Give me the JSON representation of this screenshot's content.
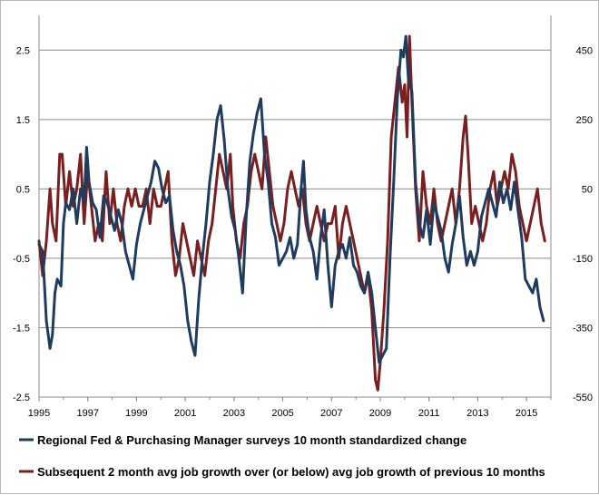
{
  "chart_data": {
    "type": "line",
    "x_range": [
      1995,
      2016
    ],
    "x_ticks": [
      "1995",
      "1997",
      "1999",
      "2001",
      "2003",
      "2005",
      "2007",
      "2009",
      "2011",
      "2013",
      "2015"
    ],
    "y_left": {
      "range": [
        -2.5,
        3.0
      ],
      "ticks": [
        "2.5",
        "1.5",
        "0.5",
        "-0.5",
        "-1.5",
        "-2.5"
      ]
    },
    "y_right": {
      "range": [
        -550,
        550
      ],
      "ticks": [
        "450",
        "250",
        "50",
        "-150",
        "-350",
        "-550"
      ]
    },
    "grid": "horizontal",
    "legend_position": "bottom",
    "series": [
      {
        "name": "Regional Fed & Purchasing Manager surveys 10 month standardized change",
        "axis": "left",
        "color": "#1f3b5e",
        "points": [
          [
            1995.0,
            -0.3
          ],
          [
            1995.15,
            -0.4
          ],
          [
            1995.3,
            -1.4
          ],
          [
            1995.45,
            -1.8
          ],
          [
            1995.55,
            -1.6
          ],
          [
            1995.65,
            -1.0
          ],
          [
            1995.75,
            -0.8
          ],
          [
            1995.9,
            -0.9
          ],
          [
            1996.0,
            0.0
          ],
          [
            1996.1,
            0.3
          ],
          [
            1996.25,
            0.2
          ],
          [
            1996.4,
            0.5
          ],
          [
            1996.55,
            0.0
          ],
          [
            1996.7,
            0.5
          ],
          [
            1996.85,
            0.3
          ],
          [
            1996.95,
            1.1
          ],
          [
            1997.05,
            0.6
          ],
          [
            1997.2,
            0.3
          ],
          [
            1997.35,
            0.2
          ],
          [
            1997.5,
            -0.2
          ],
          [
            1997.65,
            0.4
          ],
          [
            1997.8,
            0.3
          ],
          [
            1997.95,
            0.1
          ],
          [
            1998.1,
            -0.1
          ],
          [
            1998.25,
            0.2
          ],
          [
            1998.4,
            0.0
          ],
          [
            1998.55,
            -0.4
          ],
          [
            1998.7,
            -0.6
          ],
          [
            1998.85,
            -0.8
          ],
          [
            1999.0,
            -0.3
          ],
          [
            1999.15,
            0.0
          ],
          [
            1999.3,
            0.2
          ],
          [
            1999.45,
            0.4
          ],
          [
            1999.6,
            0.6
          ],
          [
            1999.75,
            0.9
          ],
          [
            1999.9,
            0.8
          ],
          [
            2000.05,
            0.5
          ],
          [
            2000.2,
            0.3
          ],
          [
            2000.35,
            0.4
          ],
          [
            2000.5,
            -0.1
          ],
          [
            2000.65,
            -0.4
          ],
          [
            2000.8,
            -0.6
          ],
          [
            2000.95,
            -0.9
          ],
          [
            2001.1,
            -1.4
          ],
          [
            2001.25,
            -1.7
          ],
          [
            2001.4,
            -1.9
          ],
          [
            2001.55,
            -1.1
          ],
          [
            2001.7,
            -0.5
          ],
          [
            2001.85,
            0.0
          ],
          [
            2002.0,
            0.6
          ],
          [
            2002.15,
            1.0
          ],
          [
            2002.3,
            1.5
          ],
          [
            2002.45,
            1.7
          ],
          [
            2002.6,
            1.2
          ],
          [
            2002.75,
            0.5
          ],
          [
            2002.9,
            0.1
          ],
          [
            2003.05,
            -0.1
          ],
          [
            2003.2,
            -0.5
          ],
          [
            2003.35,
            -1.0
          ],
          [
            2003.5,
            0.1
          ],
          [
            2003.65,
            0.9
          ],
          [
            2003.8,
            1.3
          ],
          [
            2003.95,
            1.6
          ],
          [
            2004.1,
            1.8
          ],
          [
            2004.25,
            1.0
          ],
          [
            2004.4,
            0.6
          ],
          [
            2004.55,
            0.0
          ],
          [
            2004.7,
            -0.2
          ],
          [
            2004.85,
            -0.6
          ],
          [
            2005.0,
            -0.5
          ],
          [
            2005.15,
            -0.4
          ],
          [
            2005.3,
            -0.2
          ],
          [
            2005.45,
            -0.5
          ],
          [
            2005.6,
            -0.3
          ],
          [
            2005.75,
            0.5
          ],
          [
            2005.85,
            0.9
          ],
          [
            2005.95,
            0.2
          ],
          [
            2006.1,
            -0.2
          ],
          [
            2006.25,
            -0.4
          ],
          [
            2006.4,
            -0.8
          ],
          [
            2006.55,
            -0.2
          ],
          [
            2006.7,
            0.2
          ],
          [
            2006.85,
            -0.6
          ],
          [
            2007.0,
            -1.2
          ],
          [
            2007.15,
            -0.6
          ],
          [
            2007.3,
            -0.4
          ],
          [
            2007.45,
            -0.3
          ],
          [
            2007.6,
            -0.5
          ],
          [
            2007.75,
            -0.2
          ],
          [
            2007.9,
            -0.6
          ],
          [
            2008.05,
            -0.7
          ],
          [
            2008.2,
            -0.9
          ],
          [
            2008.35,
            -1.0
          ],
          [
            2008.5,
            -0.7
          ],
          [
            2008.65,
            -1.0
          ],
          [
            2008.8,
            -1.5
          ],
          [
            2008.95,
            -2.0
          ],
          [
            2009.1,
            -1.9
          ],
          [
            2009.25,
            -1.8
          ],
          [
            2009.4,
            -0.5
          ],
          [
            2009.55,
            0.6
          ],
          [
            2009.7,
            1.8
          ],
          [
            2009.85,
            2.5
          ],
          [
            2009.95,
            2.4
          ],
          [
            2010.05,
            2.7
          ],
          [
            2010.15,
            2.1
          ],
          [
            2010.3,
            1.9
          ],
          [
            2010.45,
            0.6
          ],
          [
            2010.6,
            0.0
          ],
          [
            2010.75,
            -0.2
          ],
          [
            2010.9,
            0.2
          ],
          [
            2011.05,
            -0.3
          ],
          [
            2011.2,
            0.3
          ],
          [
            2011.35,
            0.1
          ],
          [
            2011.5,
            -0.1
          ],
          [
            2011.65,
            -0.5
          ],
          [
            2011.8,
            -0.7
          ],
          [
            2011.95,
            -0.3
          ],
          [
            2012.1,
            0.0
          ],
          [
            2012.25,
            0.4
          ],
          [
            2012.4,
            -0.2
          ],
          [
            2012.55,
            -0.6
          ],
          [
            2012.7,
            -0.4
          ],
          [
            2012.85,
            -0.6
          ],
          [
            2013.0,
            -0.4
          ],
          [
            2013.15,
            0.1
          ],
          [
            2013.3,
            0.3
          ],
          [
            2013.45,
            0.5
          ],
          [
            2013.6,
            0.3
          ],
          [
            2013.75,
            0.1
          ],
          [
            2013.9,
            0.6
          ],
          [
            2014.05,
            0.3
          ],
          [
            2014.2,
            0.5
          ],
          [
            2014.35,
            0.2
          ],
          [
            2014.5,
            0.6
          ],
          [
            2014.65,
            0.2
          ],
          [
            2014.8,
            -0.2
          ],
          [
            2014.95,
            -0.8
          ],
          [
            2015.1,
            -0.9
          ],
          [
            2015.25,
            -1.0
          ],
          [
            2015.4,
            -0.8
          ],
          [
            2015.55,
            -1.2
          ],
          [
            2015.7,
            -1.4
          ]
        ]
      },
      {
        "name": "Subsequent 2 month avg job growth over (or below) avg job growth of previous 10 months",
        "axis": "right",
        "color": "#7a1f1f",
        "points": [
          [
            1995.0,
            -100
          ],
          [
            1995.15,
            -200
          ],
          [
            1995.3,
            -100
          ],
          [
            1995.45,
            50
          ],
          [
            1995.55,
            -50
          ],
          [
            1995.7,
            -100
          ],
          [
            1995.85,
            150
          ],
          [
            1995.95,
            150
          ],
          [
            1996.1,
            0
          ],
          [
            1996.25,
            100
          ],
          [
            1996.4,
            0
          ],
          [
            1996.55,
            50
          ],
          [
            1996.7,
            150
          ],
          [
            1996.85,
            -50
          ],
          [
            1997.0,
            100
          ],
          [
            1997.15,
            0
          ],
          [
            1997.3,
            -100
          ],
          [
            1997.45,
            -50
          ],
          [
            1997.6,
            -100
          ],
          [
            1997.75,
            100
          ],
          [
            1997.9,
            -50
          ],
          [
            1998.05,
            50
          ],
          [
            1998.2,
            -50
          ],
          [
            1998.35,
            -100
          ],
          [
            1998.5,
            0
          ],
          [
            1998.65,
            50
          ],
          [
            1998.8,
            0
          ],
          [
            1998.95,
            50
          ],
          [
            1999.1,
            0
          ],
          [
            1999.25,
            0
          ],
          [
            1999.4,
            50
          ],
          [
            1999.55,
            -50
          ],
          [
            1999.7,
            50
          ],
          [
            1999.85,
            0
          ],
          [
            2000.0,
            0
          ],
          [
            2000.15,
            50
          ],
          [
            2000.3,
            100
          ],
          [
            2000.45,
            -100
          ],
          [
            2000.6,
            -200
          ],
          [
            2000.75,
            -150
          ],
          [
            2000.9,
            -50
          ],
          [
            2001.05,
            -100
          ],
          [
            2001.2,
            -150
          ],
          [
            2001.35,
            -200
          ],
          [
            2001.5,
            -100
          ],
          [
            2001.65,
            -150
          ],
          [
            2001.8,
            -200
          ],
          [
            2001.95,
            -100
          ],
          [
            2002.1,
            -50
          ],
          [
            2002.25,
            50
          ],
          [
            2002.4,
            150
          ],
          [
            2002.55,
            100
          ],
          [
            2002.7,
            50
          ],
          [
            2002.85,
            150
          ],
          [
            2002.95,
            0
          ],
          [
            2003.1,
            -100
          ],
          [
            2003.25,
            -150
          ],
          [
            2003.4,
            -50
          ],
          [
            2003.55,
            0
          ],
          [
            2003.7,
            100
          ],
          [
            2003.85,
            150
          ],
          [
            2004.0,
            100
          ],
          [
            2004.15,
            50
          ],
          [
            2004.3,
            200
          ],
          [
            2004.45,
            100
          ],
          [
            2004.6,
            0
          ],
          [
            2004.75,
            -50
          ],
          [
            2004.9,
            -100
          ],
          [
            2005.05,
            -50
          ],
          [
            2005.2,
            50
          ],
          [
            2005.35,
            100
          ],
          [
            2005.5,
            50
          ],
          [
            2005.65,
            0
          ],
          [
            2005.8,
            50
          ],
          [
            2005.95,
            -50
          ],
          [
            2006.1,
            -100
          ],
          [
            2006.25,
            -50
          ],
          [
            2006.4,
            0
          ],
          [
            2006.55,
            -50
          ],
          [
            2006.7,
            -100
          ],
          [
            2006.85,
            -50
          ],
          [
            2007.0,
            -50
          ],
          [
            2007.15,
            0
          ],
          [
            2007.3,
            -150
          ],
          [
            2007.45,
            -50
          ],
          [
            2007.6,
            0
          ],
          [
            2007.75,
            -50
          ],
          [
            2007.9,
            -100
          ],
          [
            2008.05,
            -150
          ],
          [
            2008.2,
            -200
          ],
          [
            2008.35,
            -250
          ],
          [
            2008.5,
            -200
          ],
          [
            2008.65,
            -300
          ],
          [
            2008.8,
            -500
          ],
          [
            2008.9,
            -530
          ],
          [
            2009.0,
            -450
          ],
          [
            2009.15,
            -300
          ],
          [
            2009.3,
            -100
          ],
          [
            2009.45,
            200
          ],
          [
            2009.6,
            300
          ],
          [
            2009.75,
            400
          ],
          [
            2009.9,
            300
          ],
          [
            2010.0,
            350
          ],
          [
            2010.1,
            200
          ],
          [
            2010.2,
            490
          ],
          [
            2010.3,
            300
          ],
          [
            2010.45,
            50
          ],
          [
            2010.6,
            -100
          ],
          [
            2010.75,
            100
          ],
          [
            2010.9,
            0
          ],
          [
            2011.05,
            -50
          ],
          [
            2011.2,
            50
          ],
          [
            2011.35,
            -50
          ],
          [
            2011.5,
            -100
          ],
          [
            2011.65,
            -50
          ],
          [
            2011.8,
            0
          ],
          [
            2011.95,
            50
          ],
          [
            2012.1,
            -50
          ],
          [
            2012.25,
            50
          ],
          [
            2012.4,
            200
          ],
          [
            2012.5,
            260
          ],
          [
            2012.6,
            150
          ],
          [
            2012.75,
            -50
          ],
          [
            2012.9,
            0
          ],
          [
            2013.05,
            -50
          ],
          [
            2013.2,
            -100
          ],
          [
            2013.35,
            -50
          ],
          [
            2013.5,
            50
          ],
          [
            2013.65,
            100
          ],
          [
            2013.8,
            0
          ],
          [
            2013.95,
            50
          ],
          [
            2014.1,
            100
          ],
          [
            2014.25,
            50
          ],
          [
            2014.4,
            150
          ],
          [
            2014.55,
            100
          ],
          [
            2014.7,
            0
          ],
          [
            2014.85,
            -50
          ],
          [
            2015.0,
            -100
          ],
          [
            2015.15,
            -50
          ],
          [
            2015.3,
            0
          ],
          [
            2015.45,
            50
          ],
          [
            2015.6,
            -50
          ],
          [
            2015.75,
            -100
          ]
        ]
      }
    ]
  }
}
